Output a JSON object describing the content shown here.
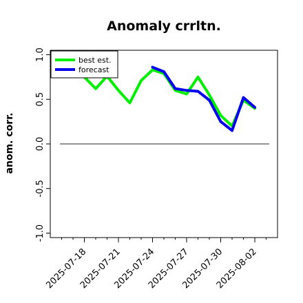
{
  "chart_data": {
    "type": "line",
    "title": "Anomaly crrltn.",
    "xlabel": "",
    "ylabel": "anom. corr.",
    "ylim": [
      -1.05,
      1.05
    ],
    "yticks": [
      -1.0,
      -0.5,
      0.0,
      0.5,
      1.0
    ],
    "ytick_labels": [
      "-1.0",
      "-0.5",
      "0.0",
      "0.5",
      "1.0"
    ],
    "xlim": [
      "2025-07-15",
      "2025-08-04"
    ],
    "xticks": [
      "2025-07-18",
      "2025-07-21",
      "2025-07-24",
      "2025-07-27",
      "2025-07-30",
      "2025-08-02"
    ],
    "xtick_labels": [
      "2025-07-18",
      "2025-07-21",
      "2025-07-24",
      "2025-07-27",
      "2025-07-30",
      "2025-08-02"
    ],
    "highlighted_xtick": "2025-07-24",
    "highlight_color": "#2e8b2e",
    "reference_line_y": 0.0,
    "grid": false,
    "legend_position": "top-left",
    "series": [
      {
        "name": "best est.",
        "color": "#00ee00",
        "x": [
          "2025-07-17",
          "2025-07-18",
          "2025-07-19",
          "2025-07-20",
          "2025-07-21",
          "2025-07-22",
          "2025-07-23",
          "2025-07-24",
          "2025-07-25",
          "2025-07-26",
          "2025-07-27",
          "2025-07-28",
          "2025-07-29",
          "2025-07-30",
          "2025-07-31",
          "2025-08-01",
          "2025-08-02"
        ],
        "y": [
          0.93,
          0.75,
          0.62,
          0.76,
          0.6,
          0.46,
          0.71,
          0.83,
          0.79,
          0.6,
          0.56,
          0.75,
          0.55,
          0.32,
          0.2,
          0.49,
          0.4
        ]
      },
      {
        "name": "forecast",
        "color": "#0000ee",
        "x": [
          "2025-07-24",
          "2025-07-25",
          "2025-07-26",
          "2025-07-27",
          "2025-07-28",
          "2025-07-29",
          "2025-07-30",
          "2025-07-31",
          "2025-08-01",
          "2025-08-02"
        ],
        "y": [
          0.86,
          0.81,
          0.62,
          0.6,
          0.59,
          0.49,
          0.25,
          0.15,
          0.52,
          0.41
        ]
      }
    ]
  }
}
